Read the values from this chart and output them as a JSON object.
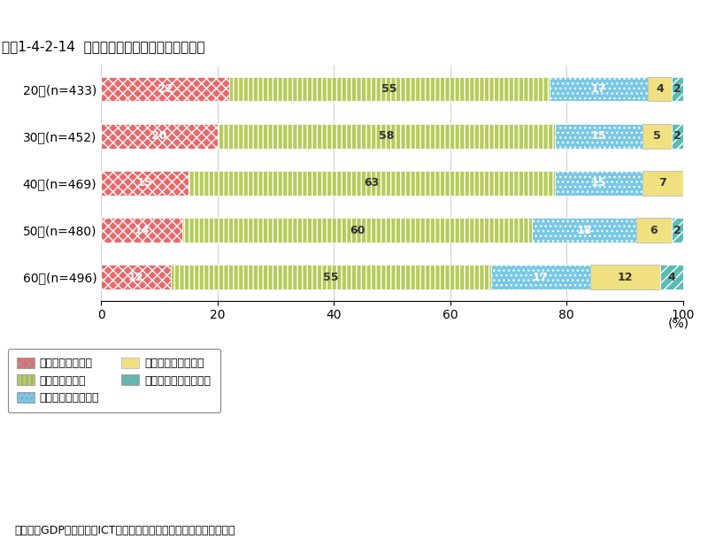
{
  "title": "図表1-4-2-14  レビューをどの程度参考にするか",
  "categories": [
    "20代(n=433)",
    "30代(n=452)",
    "40代(n=469)",
    "50代(n=480)",
    "60代(n=496)"
  ],
  "series": [
    {
      "label": "かなり参考にする",
      "values": [
        22,
        20,
        15,
        14,
        12
      ],
      "color": "#e8696b",
      "hatch": "xxx",
      "edgecolor": "#ffffff",
      "text_color": "#ffffff"
    },
    {
      "label": "まあ参考にする",
      "values": [
        55,
        58,
        63,
        60,
        55
      ],
      "color": "#b5cc5a",
      "hatch": "|||",
      "edgecolor": "#ffffff",
      "text_color": "#333333"
    },
    {
      "label": "どちらともいえない",
      "values": [
        17,
        15,
        15,
        18,
        17
      ],
      "color": "#78c8e6",
      "hatch": "...",
      "edgecolor": "#ffffff",
      "text_color": "#ffffff"
    },
    {
      "label": "あまり参考にしない",
      "values": [
        4,
        5,
        7,
        6,
        12
      ],
      "color": "#f0e080",
      "hatch": "",
      "edgecolor": "#bbbbbb",
      "text_color": "#333333"
    },
    {
      "label": "まったく参考にしない",
      "values": [
        2,
        2,
        1,
        2,
        4
      ],
      "color": "#5bbcb4",
      "hatch": "///",
      "edgecolor": "#ffffff",
      "text_color": "#333333"
    }
  ],
  "xlabel": "(%)",
  "xlim": [
    0,
    100
  ],
  "xticks": [
    0,
    20,
    40,
    60,
    80,
    100
  ],
  "source": "（出典）GDPに現れないICTの社会的厚生への貢献に関する調査研究",
  "background_color": "#ffffff",
  "bar_height": 0.52,
  "title_fontsize": 11,
  "tick_fontsize": 10,
  "label_fontsize": 10,
  "legend_fontsize": 9,
  "value_fontsize": 9
}
